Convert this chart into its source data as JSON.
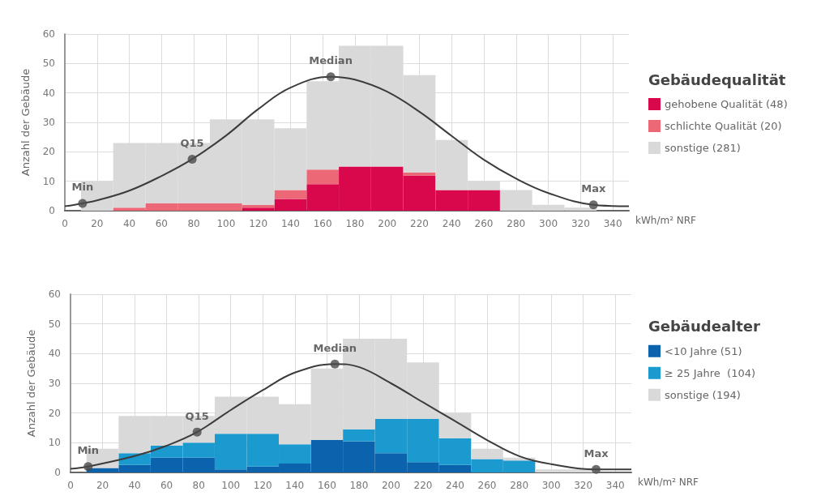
{
  "chart_data": [
    {
      "type": "bar",
      "xlabel": "kWh/m² NRF",
      "ylabel": "Anzahl der Gebäude",
      "legend_title": "Gebäudequalität",
      "legend": "right",
      "grid": true,
      "stacked": true,
      "xlim": [
        0,
        350
      ],
      "xticks": [
        0,
        20,
        40,
        60,
        80,
        100,
        120,
        140,
        160,
        180,
        200,
        220,
        240,
        260,
        280,
        300,
        320,
        340
      ],
      "ylim": [
        0,
        60
      ],
      "yticks": [
        0,
        10,
        20,
        30,
        40,
        50,
        60
      ],
      "x": [
        20,
        40,
        60,
        80,
        100,
        120,
        140,
        160,
        180,
        200,
        220,
        240,
        260,
        280,
        300,
        320
      ],
      "series": [
        {
          "name": "gehobene Qualität (48)",
          "color": "#d9084c",
          "values": [
            0,
            0,
            0,
            0,
            0,
            1,
            4,
            9,
            15,
            15,
            12,
            7,
            7,
            0,
            0,
            0
          ]
        },
        {
          "name": "schlichte Qualität (20)",
          "color": "#ec6877",
          "values": [
            0,
            1,
            2.5,
            2.5,
            2.5,
            1,
            3,
            5,
            0,
            0,
            1,
            0,
            0,
            0,
            0,
            0
          ]
        },
        {
          "name": "sonstige (281)",
          "color": "#d9d9d9",
          "values": [
            10,
            22,
            20.5,
            20.5,
            28.5,
            29,
            21,
            30,
            41,
            41,
            33,
            17,
            3,
            7,
            2,
            1
          ]
        },
        {
          "type": "line",
          "color": "#3c3c3c",
          "x": [
            0,
            11,
            20,
            40,
            60,
            79,
            100,
            120,
            140,
            165,
            180,
            200,
            220,
            240,
            260,
            280,
            300,
            328,
            350
          ],
          "values": [
            1.5,
            2.5,
            3.5,
            6.8,
            11.8,
            17.5,
            25.5,
            34.5,
            41.8,
            45.5,
            44.5,
            40.4,
            33.6,
            25.4,
            17.3,
            10.9,
            6,
            2,
            1.5
          ]
        }
      ],
      "annotations": [
        {
          "text": "Min",
          "x": 11,
          "y": 2.5
        },
        {
          "text": "Q15",
          "x": 79,
          "y": 17.5
        },
        {
          "text": "Median",
          "x": 165,
          "y": 45.5
        },
        {
          "text": "Max",
          "x": 328,
          "y": 2
        }
      ]
    },
    {
      "type": "bar",
      "xlabel": "kWh/m² NRF",
      "ylabel": "Anzahl der Gebäude",
      "legend_title": "Gebäudealter",
      "legend": "right",
      "grid": true,
      "stacked": true,
      "xlim": [
        0,
        350
      ],
      "xticks": [
        0,
        20,
        40,
        60,
        80,
        100,
        120,
        140,
        160,
        180,
        200,
        220,
        240,
        260,
        280,
        300,
        320,
        340
      ],
      "ylim": [
        0,
        60
      ],
      "yticks": [
        0,
        10,
        20,
        30,
        40,
        50,
        60
      ],
      "x": [
        20,
        40,
        60,
        80,
        100,
        120,
        140,
        160,
        180,
        200,
        220,
        240,
        260,
        280,
        300,
        320
      ],
      "series": [
        {
          "name": "<10 Jahre (51)",
          "color": "#0b62ad",
          "values": [
            1.5,
            2.5,
            5,
            5,
            1,
            2,
            3,
            11,
            10.5,
            6.5,
            3.5,
            2.5,
            0,
            0,
            0,
            0
          ]
        },
        {
          "name": "≥ 25 Jahre  (104)",
          "color": "#1b9ad0",
          "values": [
            0,
            4,
            4,
            5,
            12,
            11,
            6.5,
            0,
            4,
            11.5,
            14.5,
            9,
            4.5,
            4,
            0,
            0
          ]
        },
        {
          "name": "sonstige (194)",
          "color": "#d9d9d9",
          "values": [
            6.5,
            12.5,
            10,
            9,
            12.5,
            12.5,
            13.5,
            24,
            30.5,
            27,
            19,
            8.5,
            3.5,
            1,
            1,
            1
          ]
        },
        {
          "type": "line",
          "color": "#3c3c3c",
          "x": [
            0,
            11,
            40,
            60,
            79,
            100,
            120,
            140,
            165,
            180,
            200,
            220,
            240,
            260,
            280,
            300,
            328,
            350
          ],
          "values": [
            1.2,
            2,
            5.5,
            9,
            13.6,
            21,
            27.7,
            33.6,
            36.5,
            35.5,
            30,
            23.6,
            17.3,
            10.9,
            5.5,
            2.8,
            1,
            1
          ]
        }
      ],
      "annotations": [
        {
          "text": "Min",
          "x": 11,
          "y": 2
        },
        {
          "text": "Q15",
          "x": 79,
          "y": 13.6
        },
        {
          "text": "Median",
          "x": 165,
          "y": 36.5
        },
        {
          "text": "Max",
          "x": 328,
          "y": 1
        }
      ]
    }
  ]
}
